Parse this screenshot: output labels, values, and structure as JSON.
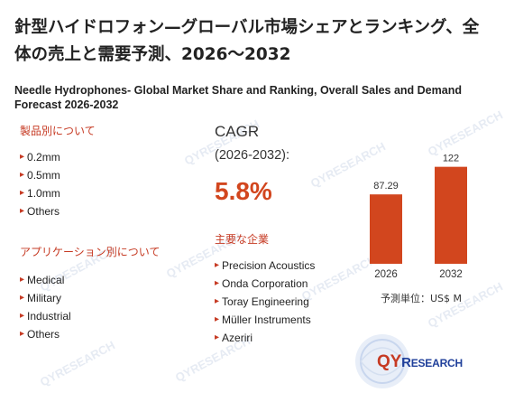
{
  "title": {
    "ja": "針型ハイドロフォン—グローバル市場シェアとランキング、全体の売上と需要予測、2026～2032",
    "en": "Needle Hydrophones- Global Market Share and Ranking, Overall Sales and Demand Forecast 2026-2032"
  },
  "product_section": {
    "heading": "製品別について",
    "items": [
      "0.2mm",
      "0.5mm",
      "1.0mm",
      "Others"
    ]
  },
  "application_section": {
    "heading": "アプリケーション別について",
    "items": [
      "Medical",
      "Military",
      "Industrial",
      "Others"
    ]
  },
  "cagr": {
    "label": "CAGR",
    "period": "(2026-2032):",
    "value": "5.8%"
  },
  "company_section": {
    "heading": "主要な企業",
    "items": [
      "Precision Acoustics",
      "Onda Corporation",
      "Toray Engineering",
      "Müller Instruments",
      "Azeriri"
    ]
  },
  "unit_label": "予測単位：US$ M",
  "logo": {
    "name": "QYRESEARCH",
    "prefix": "QY",
    "initial": "R",
    "rest": "ESEARCH"
  },
  "watermark": "QYRESEARCH",
  "colors": {
    "accent": "#c63a23",
    "bar": "#d2461e",
    "logo_blue": "#1f3f9a"
  },
  "chart_data": {
    "type": "bar",
    "categories": [
      "2026",
      "2032"
    ],
    "values": [
      87.29,
      122
    ],
    "value_labels": [
      "87.29",
      "122"
    ],
    "title": "",
    "xlabel": "",
    "ylabel": "",
    "ylim": [
      0,
      125
    ]
  }
}
